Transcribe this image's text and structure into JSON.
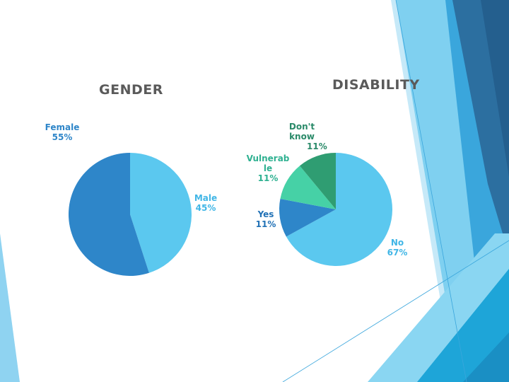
{
  "chart_data": [
    {
      "type": "pie",
      "title": "GENDER",
      "slices": [
        {
          "label": "Female",
          "value": 55,
          "display": "55%",
          "color": "#2e86c9",
          "label_color": "#2e86c9"
        },
        {
          "label": "Male",
          "value": 45,
          "display": "45%",
          "color": "#5bc8ef",
          "label_color": "#41b6e6"
        }
      ]
    },
    {
      "type": "pie",
      "title": "DISABILITY",
      "slices": [
        {
          "label": "No",
          "value": 67,
          "display": "67%",
          "color": "#5bc8ef",
          "label_color": "#41b6e6"
        },
        {
          "label": "Yes",
          "value": 11,
          "display": "11%",
          "color": "#2e86c9",
          "label_color": "#2272b6"
        },
        {
          "label": "Vulnerable",
          "label_lines": [
            "Vulnerab",
            "le"
          ],
          "value": 11,
          "display": "11%",
          "color": "#46d1a6",
          "label_color": "#2fb191"
        },
        {
          "label": "Don't know",
          "label_lines": [
            "Don't",
            "know"
          ],
          "value": 11,
          "display": "11%",
          "color": "#2f9d72",
          "label_color": "#2a8a69"
        }
      ]
    }
  ],
  "theme": {
    "accent_dark": "#2c6fa0",
    "accent_mid": "#4fb3e5",
    "accent_light": "#a8ddf4",
    "title_color": "#5a5a5a"
  }
}
